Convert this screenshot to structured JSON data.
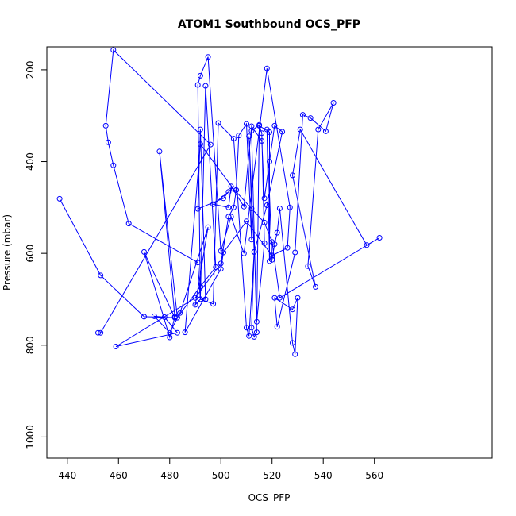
{
  "chart_data": {
    "type": "line",
    "title": "ATOM1 Southbound OCS_PFP",
    "xlabel": "OCS_PFP",
    "ylabel": "Pressure (mbar)",
    "xlim": [
      432,
      606
    ],
    "ylim": [
      1046,
      150
    ],
    "y_reversed": true,
    "xticks": [
      440,
      460,
      480,
      500,
      520,
      540,
      560
    ],
    "yticks": [
      200,
      400,
      600,
      800,
      1000
    ],
    "grid": false,
    "legend": "none",
    "series": [
      {
        "color": "#0000ff",
        "marker": "open-circle",
        "x": [
          437,
          453,
          470,
          482,
          470,
          480,
          482,
          476,
          483,
          492,
          498,
          494,
          492,
          490,
          495,
          484,
          480,
          474,
          478,
          483,
          459,
          490,
          500,
          503,
          505,
          506,
          507,
          510,
          512,
          512,
          511,
          513,
          512,
          513,
          514,
          512,
          515,
          514,
          517,
          516,
          515,
          519,
          519,
          518,
          520,
          521,
          522,
          523,
          528,
          529,
          530,
          528,
          521,
          522,
          529,
          532,
          535,
          541,
          544,
          538,
          534,
          537,
          528,
          531,
          557,
          562,
          523,
          520,
          517,
          505,
          492,
          486,
          500,
          501,
          510,
          520,
          526,
          527,
          518,
          509,
          504,
          500,
          495,
          492,
          491,
          492,
          494,
          492,
          491,
          501,
          503,
          497,
          503,
          504,
          509,
          512,
          516,
          517,
          519,
          521,
          524,
          518,
          513,
          511,
          510,
          505,
          499,
          497,
          492,
          491,
          464,
          458,
          456,
          455,
          458,
          496,
          453,
          452
        ],
        "y": [
          481,
          648,
          738,
          740,
          597,
          783,
          738,
          378,
          740,
          672,
          630,
          235,
          700,
          712,
          543,
          730,
          773,
          737,
          739,
          773,
          803,
          697,
          622,
          520,
          500,
          462,
          343,
          318,
          570,
          502,
          345,
          597,
          762,
          782,
          772,
          333,
          320,
          749,
          578,
          338,
          322,
          336,
          617,
          330,
          614,
          580,
          555,
          502,
          795,
          820,
          697,
          722,
          697,
          760,
          598,
          298,
          305,
          334,
          272,
          330,
          628,
          673,
          430,
          330,
          582,
          566,
          697,
          575,
          533,
          460,
          362,
          772,
          634,
          598,
          530,
          605,
          588,
          500,
          197,
          600,
          520,
          595,
          172,
          213,
          233,
          700,
          700,
          330,
          503,
          480,
          466,
          493,
          500,
          454,
          498,
          323,
          355,
          480,
          400,
          322,
          335,
          495,
          597,
          780,
          762,
          350,
          316,
          710,
          700,
          620,
          535,
          408,
          358,
          322,
          157,
          363,
          773,
          773
        ]
      }
    ]
  }
}
